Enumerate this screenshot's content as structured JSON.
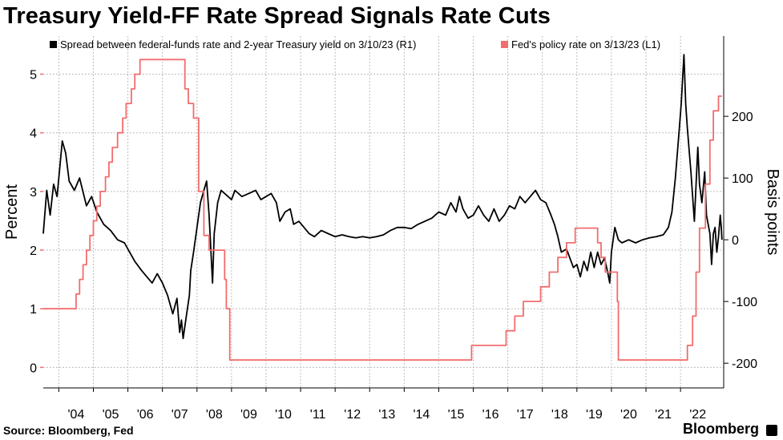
{
  "title": "Treasury Yield-FF Rate Spread Signals Rate Cuts",
  "source": "Source: Bloomberg, Fed",
  "brand": "Bloomberg",
  "chart_data": {
    "type": "line",
    "title": "Treasury Yield-FF Rate Spread Signals Rate Cuts",
    "x_range": [
      2003.55,
      2023.25
    ],
    "x_ticks": [
      "'04",
      "'05",
      "'06",
      "'07",
      "'08",
      "'09",
      "'10",
      "'11",
      "'12",
      "'13",
      "'14",
      "'15",
      "'16",
      "'17",
      "'18",
      "'19",
      "'20",
      "'21",
      "'22"
    ],
    "left_axis": {
      "label": "Percent",
      "range": [
        -0.35,
        5.65
      ],
      "ticks": [
        0,
        1,
        2,
        3,
        4,
        5
      ]
    },
    "right_axis": {
      "label": "Basis points",
      "range": [
        -240,
        330
      ],
      "ticks": [
        -200,
        -100,
        0,
        100,
        200
      ]
    },
    "colors": {
      "spread": "#000000",
      "policy": "#f26d6d",
      "grid": "#bdbdbd"
    },
    "series": [
      {
        "name": "Spread between federal-funds rate and 2-year Treasury yield on 3/10/23 (R1)",
        "axis": "right",
        "color": "#000000",
        "points": [
          [
            2003.55,
            10
          ],
          [
            2003.65,
            80
          ],
          [
            2003.75,
            40
          ],
          [
            2003.85,
            90
          ],
          [
            2003.95,
            70
          ],
          [
            2004.1,
            160
          ],
          [
            2004.2,
            140
          ],
          [
            2004.3,
            95
          ],
          [
            2004.45,
            80
          ],
          [
            2004.6,
            100
          ],
          [
            2004.8,
            55
          ],
          [
            2004.95,
            70
          ],
          [
            2005.1,
            45
          ],
          [
            2005.3,
            25
          ],
          [
            2005.5,
            15
          ],
          [
            2005.7,
            0
          ],
          [
            2005.9,
            -5
          ],
          [
            2006.05,
            -20
          ],
          [
            2006.2,
            -35
          ],
          [
            2006.4,
            -50
          ],
          [
            2006.55,
            -60
          ],
          [
            2006.7,
            -70
          ],
          [
            2006.85,
            -55
          ],
          [
            2007.0,
            -70
          ],
          [
            2007.15,
            -90
          ],
          [
            2007.3,
            -120
          ],
          [
            2007.42,
            -95
          ],
          [
            2007.5,
            -150
          ],
          [
            2007.55,
            -130
          ],
          [
            2007.6,
            -160
          ],
          [
            2007.7,
            -120
          ],
          [
            2007.78,
            -90
          ],
          [
            2007.82,
            -50
          ],
          [
            2007.9,
            -20
          ],
          [
            2008.0,
            20
          ],
          [
            2008.1,
            60
          ],
          [
            2008.2,
            80
          ],
          [
            2008.28,
            95
          ],
          [
            2008.35,
            40
          ],
          [
            2008.45,
            -70
          ],
          [
            2008.5,
            10
          ],
          [
            2008.6,
            60
          ],
          [
            2008.7,
            80
          ],
          [
            2008.8,
            75
          ],
          [
            2009.0,
            65
          ],
          [
            2009.1,
            80
          ],
          [
            2009.3,
            70
          ],
          [
            2009.5,
            75
          ],
          [
            2009.7,
            80
          ],
          [
            2009.85,
            65
          ],
          [
            2010.0,
            70
          ],
          [
            2010.15,
            75
          ],
          [
            2010.3,
            60
          ],
          [
            2010.4,
            30
          ],
          [
            2010.55,
            45
          ],
          [
            2010.7,
            50
          ],
          [
            2010.8,
            25
          ],
          [
            2010.95,
            30
          ],
          [
            2011.1,
            20
          ],
          [
            2011.25,
            10
          ],
          [
            2011.4,
            5
          ],
          [
            2011.6,
            15
          ],
          [
            2011.8,
            10
          ],
          [
            2012.0,
            5
          ],
          [
            2012.2,
            8
          ],
          [
            2012.4,
            5
          ],
          [
            2012.6,
            3
          ],
          [
            2012.8,
            5
          ],
          [
            2013.0,
            3
          ],
          [
            2013.2,
            5
          ],
          [
            2013.4,
            8
          ],
          [
            2013.6,
            15
          ],
          [
            2013.8,
            20
          ],
          [
            2014.0,
            20
          ],
          [
            2014.2,
            18
          ],
          [
            2014.4,
            25
          ],
          [
            2014.6,
            30
          ],
          [
            2014.8,
            35
          ],
          [
            2015.0,
            45
          ],
          [
            2015.2,
            40
          ],
          [
            2015.35,
            60
          ],
          [
            2015.5,
            45
          ],
          [
            2015.6,
            70
          ],
          [
            2015.7,
            50
          ],
          [
            2015.85,
            35
          ],
          [
            2016.0,
            40
          ],
          [
            2016.15,
            55
          ],
          [
            2016.3,
            40
          ],
          [
            2016.45,
            30
          ],
          [
            2016.6,
            50
          ],
          [
            2016.75,
            30
          ],
          [
            2016.9,
            40
          ],
          [
            2017.05,
            55
          ],
          [
            2017.2,
            50
          ],
          [
            2017.35,
            70
          ],
          [
            2017.5,
            60
          ],
          [
            2017.65,
            70
          ],
          [
            2017.8,
            80
          ],
          [
            2017.95,
            65
          ],
          [
            2018.1,
            60
          ],
          [
            2018.25,
            40
          ],
          [
            2018.35,
            25
          ],
          [
            2018.45,
            5
          ],
          [
            2018.55,
            -20
          ],
          [
            2018.7,
            -15
          ],
          [
            2018.8,
            -30
          ],
          [
            2018.9,
            -45
          ],
          [
            2019.0,
            -40
          ],
          [
            2019.1,
            -60
          ],
          [
            2019.2,
            -35
          ],
          [
            2019.3,
            -50
          ],
          [
            2019.4,
            -20
          ],
          [
            2019.5,
            -45
          ],
          [
            2019.6,
            -20
          ],
          [
            2019.7,
            -40
          ],
          [
            2019.8,
            -30
          ],
          [
            2019.9,
            -55
          ],
          [
            2019.95,
            -70
          ],
          [
            2020.0,
            -20
          ],
          [
            2020.1,
            20
          ],
          [
            2020.2,
            0
          ],
          [
            2020.3,
            -5
          ],
          [
            2020.5,
            0
          ],
          [
            2020.7,
            -5
          ],
          [
            2020.9,
            0
          ],
          [
            2021.1,
            3
          ],
          [
            2021.3,
            5
          ],
          [
            2021.5,
            8
          ],
          [
            2021.65,
            20
          ],
          [
            2021.75,
            45
          ],
          [
            2021.85,
            100
          ],
          [
            2021.95,
            170
          ],
          [
            2022.02,
            220
          ],
          [
            2022.1,
            300
          ],
          [
            2022.15,
            220
          ],
          [
            2022.2,
            180
          ],
          [
            2022.3,
            110
          ],
          [
            2022.4,
            30
          ],
          [
            2022.5,
            150
          ],
          [
            2022.55,
            90
          ],
          [
            2022.62,
            60
          ],
          [
            2022.7,
            110
          ],
          [
            2022.75,
            40
          ],
          [
            2022.85,
            10
          ],
          [
            2022.9,
            -40
          ],
          [
            2022.95,
            10
          ],
          [
            2023.0,
            20
          ],
          [
            2023.05,
            -20
          ],
          [
            2023.1,
            5
          ],
          [
            2023.15,
            40
          ],
          [
            2023.18,
            20
          ],
          [
            2023.2,
            0
          ]
        ]
      },
      {
        "name": "Fed's policy rate on 3/13/23 (L1)",
        "axis": "left",
        "color": "#f26d6d",
        "points": [
          [
            2003.55,
            1.0
          ],
          [
            2004.45,
            1.0
          ],
          [
            2004.5,
            1.25
          ],
          [
            2004.6,
            1.5
          ],
          [
            2004.7,
            1.75
          ],
          [
            2004.8,
            2.0
          ],
          [
            2004.9,
            2.25
          ],
          [
            2005.0,
            2.5
          ],
          [
            2005.1,
            2.75
          ],
          [
            2005.2,
            3.0
          ],
          [
            2005.35,
            3.25
          ],
          [
            2005.45,
            3.5
          ],
          [
            2005.55,
            3.75
          ],
          [
            2005.7,
            4.0
          ],
          [
            2005.85,
            4.25
          ],
          [
            2005.95,
            4.5
          ],
          [
            2006.1,
            4.75
          ],
          [
            2006.2,
            5.0
          ],
          [
            2006.35,
            5.25
          ],
          [
            2007.6,
            5.25
          ],
          [
            2007.65,
            4.75
          ],
          [
            2007.75,
            4.5
          ],
          [
            2007.9,
            4.25
          ],
          [
            2008.05,
            3.0
          ],
          [
            2008.2,
            2.25
          ],
          [
            2008.35,
            2.0
          ],
          [
            2008.75,
            2.0
          ],
          [
            2008.8,
            1.5
          ],
          [
            2008.85,
            1.0
          ],
          [
            2008.95,
            0.125
          ],
          [
            2015.9,
            0.125
          ],
          [
            2015.95,
            0.375
          ],
          [
            2016.9,
            0.375
          ],
          [
            2016.95,
            0.625
          ],
          [
            2017.2,
            0.875
          ],
          [
            2017.45,
            1.125
          ],
          [
            2017.95,
            1.375
          ],
          [
            2018.2,
            1.625
          ],
          [
            2018.45,
            1.875
          ],
          [
            2018.7,
            2.125
          ],
          [
            2018.95,
            2.375
          ],
          [
            2019.55,
            2.375
          ],
          [
            2019.6,
            2.125
          ],
          [
            2019.7,
            1.875
          ],
          [
            2019.82,
            1.625
          ],
          [
            2020.17,
            1.125
          ],
          [
            2020.2,
            0.125
          ],
          [
            2022.17,
            0.125
          ],
          [
            2022.2,
            0.375
          ],
          [
            2022.35,
            0.875
          ],
          [
            2022.45,
            1.625
          ],
          [
            2022.55,
            2.375
          ],
          [
            2022.72,
            3.125
          ],
          [
            2022.85,
            3.875
          ],
          [
            2022.95,
            4.375
          ],
          [
            2023.1,
            4.625
          ],
          [
            2023.2,
            4.625
          ]
        ]
      }
    ]
  }
}
